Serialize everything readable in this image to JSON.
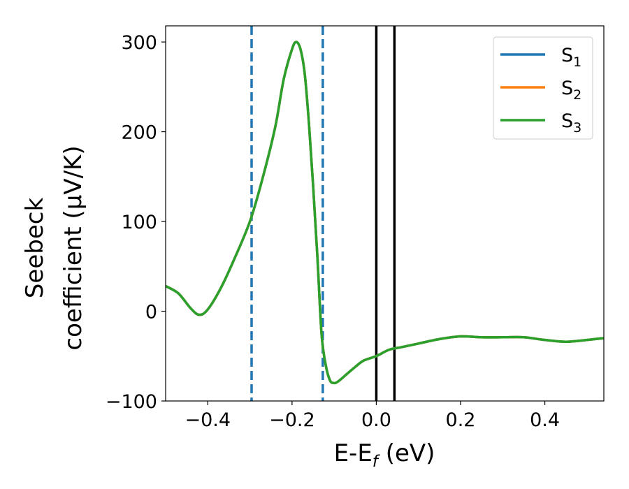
{
  "chart_data": {
    "type": "line",
    "xlabel": "E-E_f (eV)",
    "xlabel_parts": [
      "E-E",
      "f",
      " (eV)"
    ],
    "ylabel_lines": [
      "Seebeck",
      "coefficient  (μV/K)"
    ],
    "xlim": [
      -0.5,
      0.54
    ],
    "ylim": [
      -100,
      318
    ],
    "x_ticks": [
      -0.4,
      -0.2,
      0.0,
      0.2,
      0.4
    ],
    "x_tick_labels": [
      "−0.4",
      "−0.2",
      "0.0",
      "0.2",
      "0.4"
    ],
    "y_ticks": [
      -100,
      0,
      100,
      200,
      300
    ],
    "y_tick_labels": [
      "−100",
      "0",
      "100",
      "200",
      "300"
    ],
    "grid": false,
    "legend_position": "top-right",
    "series": [
      {
        "name": "S_1",
        "legend_base": "S",
        "legend_sub": "1",
        "color": "#1f77b4",
        "x": [
          -0.5,
          -0.47,
          -0.44,
          -0.42,
          -0.4,
          -0.37,
          -0.34,
          -0.3,
          -0.27,
          -0.24,
          -0.22,
          -0.2,
          -0.19,
          -0.18,
          -0.17,
          -0.16,
          -0.15,
          -0.14,
          -0.13,
          -0.12,
          -0.11,
          -0.1,
          -0.09,
          -0.07,
          -0.05,
          -0.03,
          0.0,
          0.03,
          0.06,
          0.1,
          0.15,
          0.2,
          0.25,
          0.3,
          0.35,
          0.4,
          0.45,
          0.5,
          0.54
        ],
        "y": [
          28,
          20,
          3,
          -4,
          2,
          25,
          55,
          100,
          148,
          205,
          258,
          292,
          300,
          292,
          265,
          210,
          140,
          62,
          -25,
          -60,
          -77,
          -80,
          -78,
          -70,
          -62,
          -55,
          -50,
          -43,
          -40,
          -36,
          -31,
          -28,
          -29,
          -29,
          -29,
          -32,
          -34,
          -32,
          -30
        ]
      },
      {
        "name": "S_2",
        "legend_base": "S",
        "legend_sub": "2",
        "color": "#ff7f0e",
        "x": [
          -0.5,
          -0.47,
          -0.44,
          -0.42,
          -0.4,
          -0.37,
          -0.34,
          -0.3,
          -0.27,
          -0.24,
          -0.22,
          -0.2,
          -0.19,
          -0.18,
          -0.17,
          -0.16,
          -0.15,
          -0.14,
          -0.13,
          -0.12,
          -0.11,
          -0.1,
          -0.09,
          -0.07,
          -0.05,
          -0.03,
          0.0,
          0.03,
          0.06,
          0.1,
          0.15,
          0.2,
          0.25,
          0.3,
          0.35,
          0.4,
          0.45,
          0.5,
          0.54
        ],
        "y": [
          28,
          20,
          3,
          -4,
          2,
          25,
          55,
          100,
          148,
          205,
          258,
          292,
          300,
          292,
          265,
          210,
          140,
          62,
          -25,
          -60,
          -77,
          -80,
          -78,
          -70,
          -62,
          -55,
          -50,
          -43,
          -40,
          -36,
          -31,
          -28,
          -29,
          -29,
          -29,
          -32,
          -34,
          -32,
          -30
        ]
      },
      {
        "name": "S_3",
        "legend_base": "S",
        "legend_sub": "3",
        "color": "#2ca02c",
        "x": [
          -0.5,
          -0.47,
          -0.44,
          -0.42,
          -0.4,
          -0.37,
          -0.34,
          -0.3,
          -0.27,
          -0.24,
          -0.22,
          -0.2,
          -0.19,
          -0.18,
          -0.17,
          -0.16,
          -0.15,
          -0.14,
          -0.13,
          -0.12,
          -0.11,
          -0.1,
          -0.09,
          -0.07,
          -0.05,
          -0.03,
          0.0,
          0.03,
          0.06,
          0.1,
          0.15,
          0.2,
          0.25,
          0.3,
          0.35,
          0.4,
          0.45,
          0.5,
          0.54
        ],
        "y": [
          28,
          20,
          3,
          -4,
          2,
          25,
          55,
          100,
          148,
          205,
          258,
          292,
          300,
          292,
          265,
          210,
          140,
          62,
          -25,
          -60,
          -77,
          -80,
          -78,
          -70,
          -62,
          -55,
          -50,
          -43,
          -40,
          -36,
          -31,
          -28,
          -29,
          -29,
          -29,
          -32,
          -34,
          -32,
          -30
        ]
      }
    ],
    "vertical_lines": [
      {
        "x": -0.296,
        "style": "dashed",
        "color": "#1f77b4"
      },
      {
        "x": -0.127,
        "style": "dashed",
        "color": "#1f77b4"
      },
      {
        "x": 0.0,
        "style": "solid",
        "color": "#000000"
      },
      {
        "x": 0.043,
        "style": "solid",
        "color": "#000000"
      }
    ]
  }
}
